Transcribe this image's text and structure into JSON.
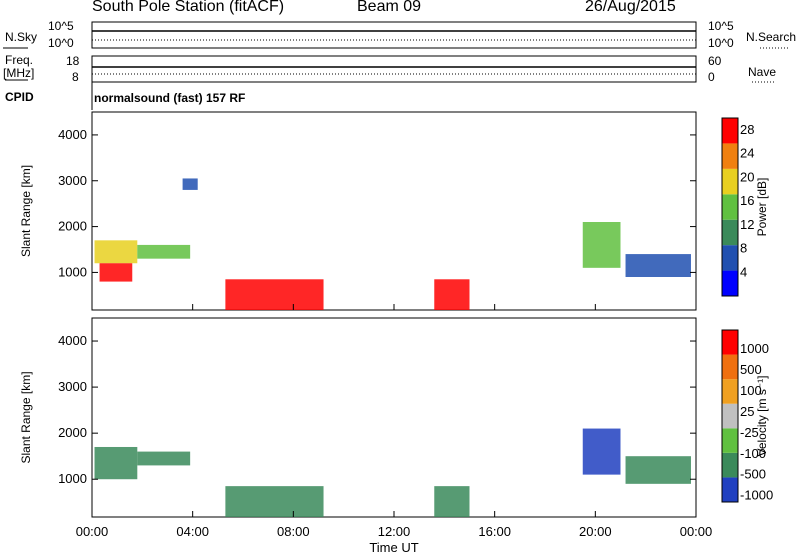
{
  "header": {
    "station": "South Pole Station (fitACF)",
    "beam": "Beam 09",
    "date": "26/Aug/2015"
  },
  "strips": {
    "nsky": {
      "label": "N.Sky",
      "ticks": [
        "10^5",
        "10^0"
      ]
    },
    "nsearch": {
      "label": "N.Search",
      "ticks": [
        "10^5",
        "10^0"
      ]
    },
    "freq": {
      "label": "Freq.",
      "unit": "[MHz]",
      "ticks": [
        "18",
        "8"
      ]
    },
    "nave": {
      "label": "Nave",
      "ticks": [
        "60",
        "0"
      ]
    },
    "cpid": {
      "label": "CPID",
      "value": "normalsound (fast) 157 RF"
    }
  },
  "chart_data": [
    {
      "type": "heatmap",
      "panel": "power",
      "ylabel": "Slant Range [km]",
      "xlabel": "",
      "ylim": [
        180,
        4500
      ],
      "y_ticks": [
        "1000",
        "2000",
        "3000",
        "4000"
      ],
      "x_ticks": [
        "00:00",
        "04:00",
        "08:00",
        "12:00",
        "16:00",
        "20:00",
        "00:00"
      ],
      "colorbar": {
        "label": "Power [dB]",
        "ticks": [
          "4",
          "8",
          "12",
          "16",
          "20",
          "24",
          "28"
        ],
        "range": [
          0,
          30
        ],
        "colors": [
          "#0000ff",
          "#2050b0",
          "#3a8a5a",
          "#60c040",
          "#e8d020",
          "#f08010",
          "#ff0000"
        ]
      },
      "patches": [
        {
          "t": [
            0.1,
            1.8
          ],
          "r": [
            1200,
            1700
          ],
          "level": 4
        },
        {
          "t": [
            0.3,
            1.6
          ],
          "r": [
            800,
            1200
          ],
          "level": 6
        },
        {
          "t": [
            1.8,
            3.9
          ],
          "r": [
            1300,
            1600
          ],
          "level": 3
        },
        {
          "t": [
            3.6,
            4.2
          ],
          "r": [
            2800,
            3050
          ],
          "level": 1
        },
        {
          "t": [
            5.3,
            9.2
          ],
          "r": [
            180,
            850
          ],
          "level": 6
        },
        {
          "t": [
            13.6,
            15.0
          ],
          "r": [
            180,
            850
          ],
          "level": 6
        },
        {
          "t": [
            19.5,
            21.0
          ],
          "r": [
            1100,
            2100
          ],
          "level": 3
        },
        {
          "t": [
            21.2,
            23.8
          ],
          "r": [
            900,
            1400
          ],
          "level": 1
        }
      ]
    },
    {
      "type": "heatmap",
      "panel": "velocity",
      "ylabel": "Slant Range [km]",
      "xlabel": "Time UT",
      "ylim": [
        180,
        4500
      ],
      "y_ticks": [
        "1000",
        "2000",
        "3000",
        "4000"
      ],
      "x_ticks": [
        "00:00",
        "04:00",
        "08:00",
        "12:00",
        "16:00",
        "20:00",
        "00:00"
      ],
      "colorbar": {
        "label": "Velocity [m s⁻¹]",
        "ticks": [
          "1000",
          "500",
          "100",
          "25",
          "-25",
          "-100",
          "-500",
          "-1000"
        ],
        "colors": [
          "#2040c0",
          "#3a8a5a",
          "#60c040",
          "#c0c0c0",
          "#f0a020",
          "#f07010",
          "#ff0000"
        ]
      },
      "patches": [
        {
          "t": [
            0.1,
            1.8
          ],
          "r": [
            1000,
            1700
          ],
          "level": 1
        },
        {
          "t": [
            1.8,
            3.9
          ],
          "r": [
            1300,
            1600
          ],
          "level": 1
        },
        {
          "t": [
            5.3,
            9.2
          ],
          "r": [
            180,
            850
          ],
          "level": 1
        },
        {
          "t": [
            13.6,
            15.0
          ],
          "r": [
            180,
            850
          ],
          "level": 1
        },
        {
          "t": [
            19.5,
            21.0
          ],
          "r": [
            1100,
            2100
          ],
          "level": 0
        },
        {
          "t": [
            21.2,
            23.8
          ],
          "r": [
            900,
            1500
          ],
          "level": 1
        }
      ]
    }
  ]
}
